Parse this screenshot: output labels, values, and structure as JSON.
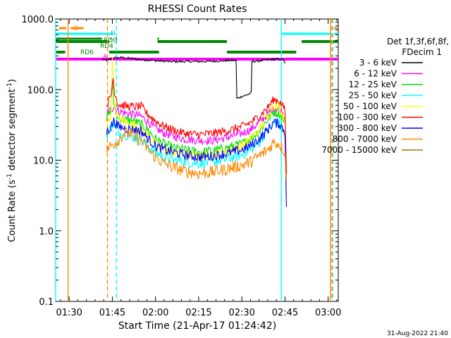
{
  "chart_data": {
    "type": "line",
    "title": "RHESSI Count Rates",
    "xlabel": "Start Time (21-Apr-17 01:24:42)",
    "ylabel_main": "Count Rate (s",
    "ylabel_sup1": "-1",
    "ylabel_mid": " detector segment",
    "ylabel_sup2": "-1",
    "ylabel_end": ")",
    "y_scale": "log",
    "ylim": [
      0.1,
      1000
    ],
    "xlim_minutes": [
      85.3,
      183.5
    ],
    "x_ticks": [
      {
        "t": 90,
        "label": "01:30"
      },
      {
        "t": 105,
        "label": "01:45"
      },
      {
        "t": 120,
        "label": "02:00"
      },
      {
        "t": 135,
        "label": "02:15"
      },
      {
        "t": 150,
        "label": "02:30"
      },
      {
        "t": 165,
        "label": "02:45"
      },
      {
        "t": 180,
        "label": "03:00"
      }
    ],
    "y_ticks": [
      {
        "v": 0.1,
        "label": "0.1"
      },
      {
        "v": 1,
        "label": "1.0"
      },
      {
        "v": 10,
        "label": "10.0"
      },
      {
        "v": 100,
        "label": "100.0"
      },
      {
        "v": 1000,
        "label": "1000.0"
      }
    ],
    "legend": {
      "header1": "Det 1f,3f,6f,8f,",
      "header2": "FDecim 1",
      "position": "right"
    },
    "series": [
      {
        "name": "3 - 6 keV",
        "color": "#000000",
        "points": [
          [
            101.5,
            270
          ],
          [
            103,
            260
          ],
          [
            105,
            280
          ],
          [
            108,
            285
          ],
          [
            112,
            275
          ],
          [
            115,
            265
          ],
          [
            118,
            262
          ],
          [
            121,
            255
          ],
          [
            125,
            250
          ],
          [
            130,
            250
          ],
          [
            135,
            250
          ],
          [
            140,
            252
          ],
          [
            145,
            258
          ],
          [
            148,
            260
          ],
          [
            148.2,
            75
          ],
          [
            150,
            80
          ],
          [
            152,
            85
          ],
          [
            153.4,
            90
          ],
          [
            153.5,
            250
          ],
          [
            156,
            255
          ],
          [
            159,
            265
          ],
          [
            162,
            270
          ],
          [
            164.5,
            265
          ],
          [
            165,
            230
          ]
        ]
      },
      {
        "name": "6 - 12 keV",
        "color": "#ff00ff",
        "points": [
          [
            103,
            48
          ],
          [
            104.5,
            52
          ],
          [
            105.6,
            58
          ],
          [
            107,
            50
          ],
          [
            110,
            46
          ],
          [
            113,
            44
          ],
          [
            115,
            42
          ],
          [
            117,
            36
          ],
          [
            120,
            28
          ],
          [
            123,
            24
          ],
          [
            126,
            22
          ],
          [
            130,
            20
          ],
          [
            135,
            19
          ],
          [
            140,
            19
          ],
          [
            145,
            21
          ],
          [
            150,
            24
          ],
          [
            153,
            27
          ],
          [
            156,
            34
          ],
          [
            159,
            45
          ],
          [
            161,
            55
          ],
          [
            163,
            54
          ],
          [
            164.5,
            45
          ],
          [
            165,
            40
          ],
          [
            165.5,
            5
          ]
        ]
      },
      {
        "name": "12 - 25 keV",
        "color": "#00dd00",
        "points": [
          [
            103,
            38
          ],
          [
            104.5,
            50
          ],
          [
            105,
            135
          ],
          [
            105.6,
            55
          ],
          [
            107,
            40
          ],
          [
            110,
            37
          ],
          [
            113,
            35
          ],
          [
            115,
            32
          ],
          [
            117,
            28
          ],
          [
            120,
            20
          ],
          [
            123,
            17
          ],
          [
            126,
            15
          ],
          [
            130,
            14
          ],
          [
            135,
            13
          ],
          [
            140,
            13.5
          ],
          [
            145,
            15
          ],
          [
            150,
            17
          ],
          [
            153,
            20
          ],
          [
            156,
            26
          ],
          [
            159,
            38
          ],
          [
            161,
            48
          ],
          [
            163,
            46
          ],
          [
            164.5,
            38
          ],
          [
            165,
            35
          ],
          [
            165.5,
            4
          ]
        ]
      },
      {
        "name": "25 - 50 keV",
        "color": "#00ffff",
        "points": [
          [
            103,
            22
          ],
          [
            104.5,
            30
          ],
          [
            105.6,
            33
          ],
          [
            107,
            25
          ],
          [
            110,
            23
          ],
          [
            113,
            21
          ],
          [
            115,
            19
          ],
          [
            117,
            16
          ],
          [
            120,
            13
          ],
          [
            123,
            11
          ],
          [
            126,
            10
          ],
          [
            130,
            9.5
          ],
          [
            135,
            9
          ],
          [
            140,
            9.5
          ],
          [
            145,
            10.5
          ],
          [
            150,
            12
          ],
          [
            153,
            14
          ],
          [
            156,
            18
          ],
          [
            159,
            27
          ],
          [
            161,
            34
          ],
          [
            163,
            33
          ],
          [
            164.5,
            26
          ],
          [
            165,
            24
          ],
          [
            165.5,
            3
          ]
        ]
      },
      {
        "name": "50 - 100 keV",
        "color": "#ffff00",
        "points": [
          [
            103,
            30
          ],
          [
            104.5,
            45
          ],
          [
            105,
            250
          ],
          [
            105.6,
            70
          ],
          [
            107,
            38
          ],
          [
            110,
            34
          ],
          [
            113,
            31
          ],
          [
            115,
            28
          ],
          [
            117,
            23
          ],
          [
            120,
            17
          ],
          [
            123,
            14
          ],
          [
            126,
            13
          ],
          [
            130,
            12
          ],
          [
            135,
            11.5
          ],
          [
            140,
            12
          ],
          [
            145,
            13.5
          ],
          [
            150,
            16
          ],
          [
            153,
            20
          ],
          [
            156,
            27
          ],
          [
            159,
            42
          ],
          [
            161,
            62
          ],
          [
            163,
            58
          ],
          [
            164.5,
            42
          ],
          [
            165,
            36
          ],
          [
            165.5,
            4
          ]
        ]
      },
      {
        "name": "100 - 300 keV",
        "color": "#ff0000",
        "points": [
          [
            103,
            60
          ],
          [
            104.5,
            80
          ],
          [
            105.3,
            155
          ],
          [
            105.6,
            100
          ],
          [
            107,
            62
          ],
          [
            110,
            58
          ],
          [
            113,
            57
          ],
          [
            115,
            58
          ],
          [
            117,
            46
          ],
          [
            120,
            36
          ],
          [
            123,
            30
          ],
          [
            126,
            27
          ],
          [
            130,
            24
          ],
          [
            135,
            23
          ],
          [
            140,
            24
          ],
          [
            145,
            26
          ],
          [
            150,
            30
          ],
          [
            153,
            34
          ],
          [
            156,
            42
          ],
          [
            159,
            56
          ],
          [
            161,
            72
          ],
          [
            163,
            70
          ],
          [
            164.5,
            56
          ],
          [
            165,
            50
          ],
          [
            165.5,
            6
          ]
        ]
      },
      {
        "name": "300 - 800 keV",
        "color": "#0000ff",
        "points": [
          [
            103,
            25
          ],
          [
            104.5,
            30
          ],
          [
            105.6,
            36
          ],
          [
            107,
            30
          ],
          [
            110,
            28
          ],
          [
            113,
            27
          ],
          [
            115,
            26
          ],
          [
            117,
            21
          ],
          [
            120,
            16
          ],
          [
            123,
            14
          ],
          [
            126,
            13
          ],
          [
            130,
            12
          ],
          [
            135,
            11
          ],
          [
            140,
            11.5
          ],
          [
            145,
            12.5
          ],
          [
            150,
            14
          ],
          [
            153,
            16
          ],
          [
            156,
            20
          ],
          [
            159,
            27
          ],
          [
            161,
            34
          ],
          [
            163,
            33
          ],
          [
            164.5,
            27
          ],
          [
            165,
            24
          ],
          [
            165.5,
            2.2
          ]
        ]
      },
      {
        "name": "800 - 7000 keV",
        "color": "#ff8800",
        "points": [
          [
            103,
            14
          ],
          [
            104.5,
            16
          ],
          [
            107,
            19
          ],
          [
            109,
            24
          ],
          [
            111,
            24
          ],
          [
            113,
            21
          ],
          [
            115,
            19
          ],
          [
            117,
            15
          ],
          [
            120,
            11
          ],
          [
            123,
            9
          ],
          [
            126,
            8
          ],
          [
            130,
            7
          ],
          [
            135,
            6.5
          ],
          [
            140,
            6.8
          ],
          [
            145,
            7.5
          ],
          [
            150,
            8.5
          ],
          [
            153,
            9.5
          ],
          [
            156,
            11.5
          ],
          [
            159,
            14
          ],
          [
            161,
            18
          ],
          [
            163,
            17
          ],
          [
            164.5,
            14
          ],
          [
            165,
            12
          ],
          [
            165.5,
            5
          ]
        ]
      },
      {
        "name": "7000 - 15000 keV",
        "color": "#aa7700",
        "points": []
      }
    ],
    "markers": [
      {
        "label": "S",
        "t": 89.6,
        "color": "#ff8800",
        "style": "solid"
      },
      {
        "label": "S",
        "t": 103.3,
        "color": "#ff8800",
        "style": "dashed"
      },
      {
        "label": "N",
        "t": 85.3,
        "color": "#00ffff",
        "style": "solid"
      },
      {
        "label": "N",
        "t": 106.4,
        "color": "#00ffff",
        "style": "dashed"
      },
      {
        "label": "",
        "t": 163.7,
        "color": "#00ffff",
        "style": "solid"
      },
      {
        "label": "",
        "t": 181.6,
        "color": "#00ffff",
        "style": "dashed"
      },
      {
        "label": "",
        "t": 180.8,
        "color": "#ff8800",
        "style": "solid"
      },
      {
        "label": "",
        "t": 181.3,
        "color": "#ff8800",
        "style": "dashed"
      }
    ],
    "flags": {
      "S_label": "S",
      "N_label": "N",
      "RD0_label": "RD0",
      "RD4_label": "RD4",
      "RD6_label": "RD6",
      "A_label": "A",
      "orange_S": [
        [
          86.5,
          89
        ],
        [
          90.5,
          95
        ],
        [
          182.1,
          183.2
        ]
      ],
      "cyan_N": [
        [
          85.3,
          105.2
        ],
        [
          163.9,
          180.9
        ],
        [
          182.1,
          183.5
        ]
      ],
      "green_upper": [
        [
          85.3,
          103.9
        ],
        [
          106.3,
          106.6
        ],
        [
          120.7,
          144.8
        ],
        [
          170.8,
          183.5
        ]
      ],
      "green_lower": [
        [
          85.3,
          88.6
        ],
        [
          103.9,
          121.2
        ],
        [
          144.8,
          168.9
        ]
      ],
      "green_ticks": [
        [
          85.3,
          101.4
        ],
        [
          104.3,
          104.6
        ],
        [
          106.3,
          106.6
        ],
        [
          120.7,
          121.2
        ]
      ],
      "magenta_A": [
        [
          85.3,
          183.5
        ]
      ]
    },
    "footer_date": "31-Aug-2022 21:40"
  }
}
